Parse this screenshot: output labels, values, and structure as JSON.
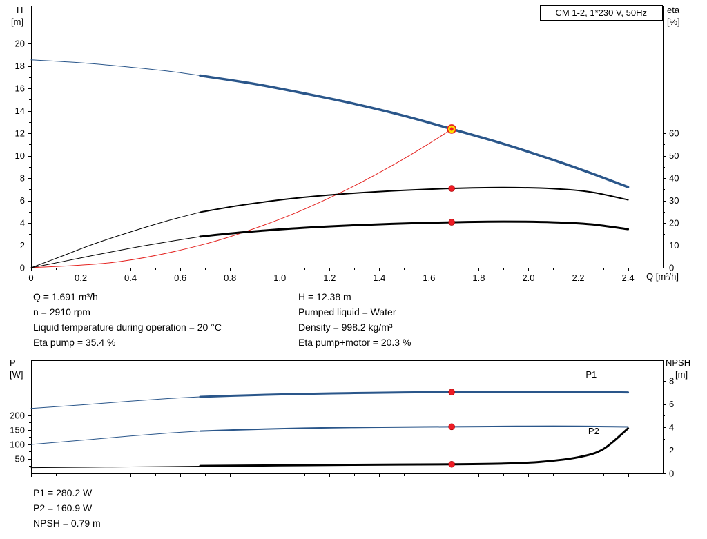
{
  "title_box": "CM 1-2, 1*230 V, 50Hz",
  "colors": {
    "curve_blue": "#2a568a",
    "curve_red": "#e42320",
    "curve_black": "#000000",
    "duty_fill": "#ffe200",
    "dot_red": "#ee1c25",
    "axis": "#000000"
  },
  "chart_data": [
    {
      "id": "top",
      "type": "line",
      "x_label": "Q [m³/h]",
      "y_left_label": [
        "H",
        "[m]"
      ],
      "y_right_label": [
        "eta",
        "[%]"
      ],
      "x_range": [
        0,
        2.54
      ],
      "y_left_range": [
        0,
        23.4
      ],
      "y_right_range": [
        0,
        117
      ],
      "x_ticks": [
        "0",
        "0.2",
        "0.4",
        "0.6",
        "0.8",
        "1.0",
        "1.2",
        "1.4",
        "1.6",
        "1.8",
        "2.0",
        "2.2",
        "2.4"
      ],
      "x_minor_step": 0.1,
      "show_x_labels": true,
      "y_left_ticks": [
        "0",
        "2",
        "4",
        "6",
        "8",
        "10",
        "12",
        "14",
        "16",
        "18",
        "20"
      ],
      "y_left_minor_step": 1,
      "y_right_ticks": [
        "0",
        "10",
        "20",
        "30",
        "40",
        "50",
        "60"
      ],
      "y_right_minor_step": 5,
      "series": [
        {
          "name": "hq-curve-low-flow",
          "axis": "left",
          "color": "blue",
          "width": 1,
          "points": [
            [
              0,
              18.55
            ],
            [
              0.2,
              18.29
            ],
            [
              0.4,
              17.9
            ],
            [
              0.55,
              17.55
            ],
            [
              0.68,
              17.15
            ]
          ]
        },
        {
          "name": "hq-curve",
          "axis": "left",
          "color": "blue",
          "width": 3.5,
          "points": [
            [
              0.68,
              17.15
            ],
            [
              0.9,
              16.4
            ],
            [
              1.1,
              15.55
            ],
            [
              1.3,
              14.63
            ],
            [
              1.5,
              13.56
            ],
            [
              1.691,
              12.38
            ],
            [
              1.9,
              11.05
            ],
            [
              2.1,
              9.62
            ],
            [
              2.25,
              8.45
            ],
            [
              2.4,
              7.2
            ]
          ]
        },
        {
          "name": "system-curve",
          "axis": "left",
          "color": "red",
          "width": 1,
          "points": [
            [
              0,
              0
            ],
            [
              0.35,
              0.53
            ],
            [
              0.7,
              2.12
            ],
            [
              1.0,
              4.33
            ],
            [
              1.25,
              6.76
            ],
            [
              1.45,
              9.1
            ],
            [
              1.6,
              11.08
            ],
            [
              1.691,
              12.38
            ]
          ]
        },
        {
          "name": "eta-pump-curve-low-flow",
          "axis": "right",
          "color": "black",
          "width": 1,
          "points": [
            [
              0,
              0
            ],
            [
              0.12,
              5
            ],
            [
              0.25,
              10.5
            ],
            [
              0.4,
              16
            ],
            [
              0.55,
              21
            ],
            [
              0.68,
              24.8
            ]
          ]
        },
        {
          "name": "eta-pump-curve",
          "axis": "right",
          "color": "black",
          "width": 2,
          "points": [
            [
              0.68,
              24.8
            ],
            [
              0.85,
              28
            ],
            [
              1.05,
              30.9
            ],
            [
              1.25,
              32.9
            ],
            [
              1.45,
              34.3
            ],
            [
              1.691,
              35.4
            ],
            [
              1.9,
              35.8
            ],
            [
              2.1,
              35.3
            ],
            [
              2.25,
              33.8
            ],
            [
              2.4,
              30.3
            ]
          ]
        },
        {
          "name": "eta-pump-motor-curve-low-flow",
          "axis": "right",
          "color": "black",
          "width": 1,
          "points": [
            [
              0,
              0
            ],
            [
              0.12,
              2.6
            ],
            [
              0.25,
              5.5
            ],
            [
              0.4,
              8.7
            ],
            [
              0.55,
              11.6
            ],
            [
              0.68,
              13.9
            ]
          ]
        },
        {
          "name": "eta-pump-motor-curve",
          "axis": "right",
          "color": "black",
          "width": 3,
          "points": [
            [
              0.68,
              13.9
            ],
            [
              0.85,
              15.8
            ],
            [
              1.05,
              17.5
            ],
            [
              1.25,
              18.7
            ],
            [
              1.45,
              19.6
            ],
            [
              1.691,
              20.3
            ],
            [
              1.9,
              20.6
            ],
            [
              2.1,
              20.3
            ],
            [
              2.25,
              19.4
            ],
            [
              2.4,
              17.2
            ]
          ]
        }
      ],
      "markers": [
        {
          "name": "duty-point",
          "style": "duty",
          "axis": "left",
          "x": 1.691,
          "y": 12.38
        },
        {
          "name": "eta-pump-duty-dot",
          "style": "dot",
          "axis": "right",
          "x": 1.691,
          "y": 35.4
        },
        {
          "name": "eta-pump-motor-duty-dot",
          "style": "dot",
          "axis": "right",
          "x": 1.691,
          "y": 20.3
        }
      ],
      "curve_labels": []
    },
    {
      "id": "bottom",
      "type": "line",
      "x_label": "",
      "y_left_label": [
        "P",
        "[W]"
      ],
      "y_right_label": [
        "NPSH",
        "[m]"
      ],
      "x_range": [
        0,
        2.54
      ],
      "y_left_range": [
        0,
        390
      ],
      "y_right_range": [
        0,
        9.8
      ],
      "x_ticks": [
        "0",
        "0.2",
        "0.4",
        "0.6",
        "0.8",
        "1.0",
        "1.2",
        "1.4",
        "1.6",
        "1.8",
        "2.0",
        "2.2",
        "2.4"
      ],
      "x_minor_step": 0.1,
      "show_x_labels": false,
      "y_left_ticks": [
        "50",
        "100",
        "150",
        "200"
      ],
      "y_left_minor_step": 25,
      "y_right_ticks": [
        "0",
        "2",
        "4",
        "6",
        "8"
      ],
      "y_right_minor_step": 1,
      "series": [
        {
          "name": "p1-curve-low-flow",
          "axis": "left",
          "color": "blue",
          "width": 1,
          "points": [
            [
              0,
              224
            ],
            [
              0.2,
              236
            ],
            [
              0.4,
              249
            ],
            [
              0.55,
              258
            ],
            [
              0.68,
              264
            ]
          ]
        },
        {
          "name": "p1-curve",
          "axis": "left",
          "color": "blue",
          "width": 3,
          "points": [
            [
              0.68,
              264
            ],
            [
              0.9,
              270
            ],
            [
              1.1,
              274
            ],
            [
              1.3,
              277
            ],
            [
              1.5,
              279
            ],
            [
              1.691,
              280.2
            ],
            [
              1.9,
              281.2
            ],
            [
              2.1,
              281.3
            ],
            [
              2.25,
              280.6
            ],
            [
              2.4,
              279
            ]
          ]
        },
        {
          "name": "p2-curve-low-flow",
          "axis": "left",
          "color": "blue",
          "width": 1,
          "points": [
            [
              0,
              100
            ],
            [
              0.2,
              114
            ],
            [
              0.4,
              129
            ],
            [
              0.55,
              139
            ],
            [
              0.68,
              146
            ]
          ]
        },
        {
          "name": "p2-curve",
          "axis": "left",
          "color": "blue",
          "width": 2,
          "points": [
            [
              0.68,
              146
            ],
            [
              0.9,
              152
            ],
            [
              1.1,
              156
            ],
            [
              1.3,
              158.5
            ],
            [
              1.5,
              160
            ],
            [
              1.691,
              160.9
            ],
            [
              1.9,
              162
            ],
            [
              2.1,
              162.5
            ],
            [
              2.25,
              162
            ],
            [
              2.4,
              160.5
            ]
          ]
        },
        {
          "name": "npsh-curve-low-flow",
          "axis": "right",
          "color": "black",
          "width": 1,
          "points": [
            [
              0,
              0.5
            ],
            [
              0.3,
              0.55
            ],
            [
              0.55,
              0.6
            ],
            [
              0.68,
              0.63
            ]
          ]
        },
        {
          "name": "npsh-curve",
          "axis": "right",
          "color": "black",
          "width": 3,
          "points": [
            [
              0.68,
              0.65
            ],
            [
              1.0,
              0.7
            ],
            [
              1.3,
              0.75
            ],
            [
              1.691,
              0.79
            ],
            [
              1.9,
              0.85
            ],
            [
              2.05,
              1.0
            ],
            [
              2.2,
              1.4
            ],
            [
              2.3,
              2.1
            ],
            [
              2.4,
              3.9
            ]
          ]
        }
      ],
      "markers": [
        {
          "name": "p1-duty-dot",
          "style": "dot",
          "axis": "left",
          "x": 1.691,
          "y": 280.2
        },
        {
          "name": "p2-duty-dot",
          "style": "dot",
          "axis": "left",
          "x": 1.691,
          "y": 160.9
        },
        {
          "name": "npsh-duty-dot",
          "style": "dot",
          "axis": "right",
          "x": 1.691,
          "y": 0.79
        }
      ],
      "curve_labels": [
        {
          "text": "P1",
          "axis": "left",
          "x": 2.23,
          "y": 330
        },
        {
          "text": "P2",
          "axis": "left",
          "x": 2.24,
          "y": 135
        }
      ]
    }
  ],
  "info_panel_top": {
    "left": [
      "Q = 1.691 m³/h",
      "n = 2910 rpm",
      "Liquid temperature during operation = 20 °C",
      "Eta pump = 35.4 %"
    ],
    "right": [
      "H = 12.38 m",
      "Pumped liquid = Water",
      "Density = 998.2 kg/m³",
      "Eta pump+motor = 20.3 %"
    ]
  },
  "info_panel_bottom": [
    "P1 = 280.2 W",
    "P2 = 160.9 W",
    "NPSH = 0.79 m"
  ]
}
